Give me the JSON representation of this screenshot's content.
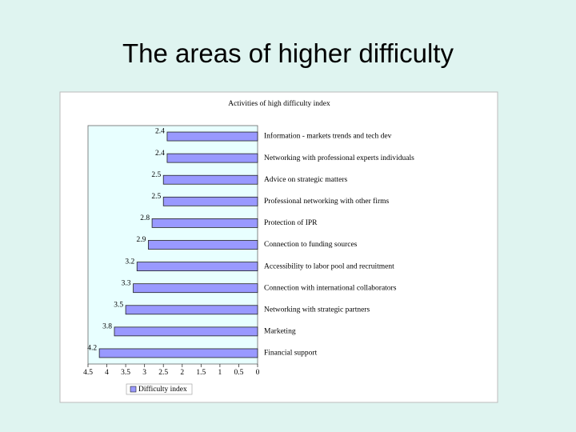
{
  "slide_title": "The areas of higher difficulty",
  "chart_data": {
    "type": "bar",
    "orientation": "horizontal",
    "title": "Activities of high difficulty index",
    "categories": [
      "Information - markets trends and tech dev",
      "Networking with professional experts individuals",
      "Advice on strategic matters",
      "Professional networking with other firms",
      "Protection of IPR",
      "Connection to funding sources",
      "Accessibility to labor pool and recruitment",
      "Connection with international collaborators",
      "Networking with strategic partners",
      "Marketing",
      "Financial support"
    ],
    "series": [
      {
        "name": "Difficulty index",
        "color": "#9999ff",
        "values": [
          2.4,
          2.4,
          2.5,
          2.5,
          2.8,
          2.9,
          3.2,
          3.3,
          3.5,
          3.8,
          4.2
        ]
      }
    ],
    "xlim": [
      4.5,
      0
    ],
    "xticks": [
      4.5,
      4,
      3.5,
      3,
      2.5,
      2,
      1.5,
      1,
      0.5,
      0
    ],
    "legend": "bottom-left",
    "data_labels": true
  }
}
